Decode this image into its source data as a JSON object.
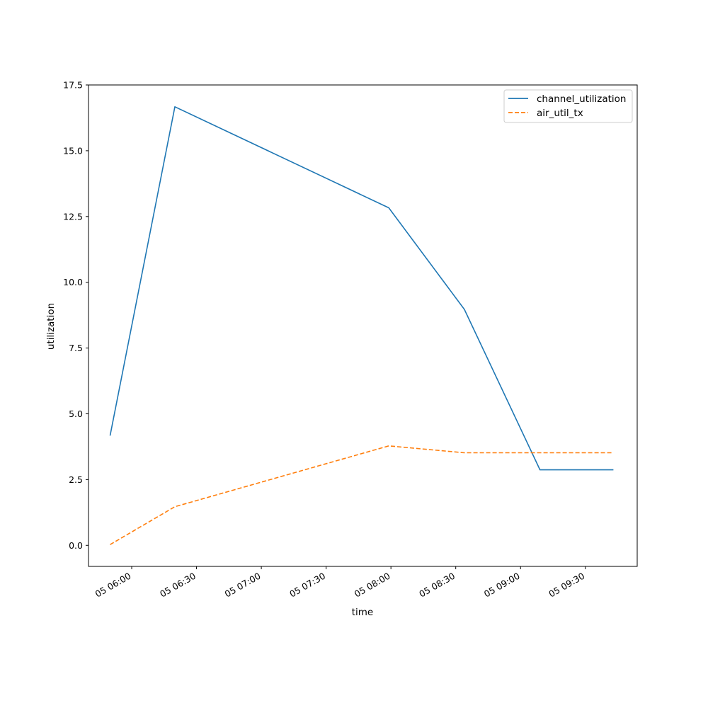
{
  "chart_data": {
    "type": "line",
    "xlabel": "time",
    "ylabel": "utilization",
    "x": [
      "05 05:50",
      "05 06:20",
      "05 07:59",
      "05 08:34",
      "05 09:09",
      "05 09:43"
    ],
    "series": [
      {
        "name": "channel_utilization",
        "values": [
          4.17,
          16.67,
          12.83,
          8.97,
          2.87,
          2.87
        ],
        "color": "#1f77b4",
        "style": "solid"
      },
      {
        "name": "air_util_tx",
        "values": [
          0.03,
          1.47,
          3.78,
          3.52,
          3.52,
          3.52
        ],
        "color": "#ff7f0e",
        "style": "dashed"
      }
    ],
    "xticks": [
      "05 06:00",
      "05 06:30",
      "05 07:00",
      "05 07:30",
      "05 08:00",
      "05 08:30",
      "05 09:00",
      "05 09:30"
    ],
    "yticks": [
      "0.0",
      "2.5",
      "5.0",
      "7.5",
      "10.0",
      "12.5",
      "15.0",
      "17.5"
    ],
    "xlim": [
      "05 05:40",
      "05 09:54"
    ],
    "ylim": [
      -0.8,
      17.5
    ],
    "legend_position": "top-right",
    "grid": false
  }
}
